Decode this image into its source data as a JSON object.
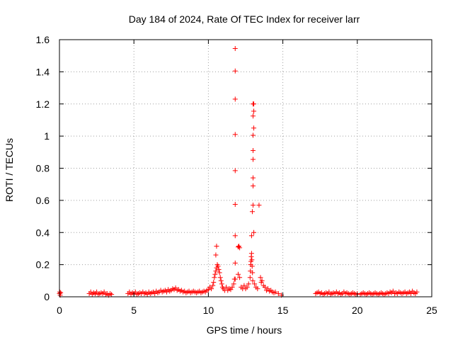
{
  "chart_data": {
    "type": "scatter",
    "title": "Day 184 of 2024, Rate Of TEC Index for receiver larr",
    "xlabel": "GPS time / hours",
    "ylabel": "ROTI / TECUs",
    "xlim": [
      0,
      25
    ],
    "ylim": [
      0,
      1.6
    ],
    "xticks": [
      0,
      5,
      10,
      15,
      20,
      25
    ],
    "xtick_labels": [
      "0",
      "5",
      "10",
      "15",
      "20",
      "25"
    ],
    "yticks": [
      0,
      0.2,
      0.4,
      0.6,
      0.8,
      1,
      1.2,
      1.4,
      1.6
    ],
    "ytick_labels": [
      "0",
      "0.2",
      "0.4",
      "0.6",
      "0.8",
      "1",
      "1.2",
      "1.4",
      "1.6"
    ],
    "grid": true,
    "marker": "+",
    "color": "#ff0000",
    "points": [
      [
        0.0,
        0.02
      ],
      [
        0.02,
        0.03
      ],
      [
        0.05,
        0.01
      ],
      [
        0.08,
        0.025
      ],
      [
        2.0,
        0.02
      ],
      [
        2.1,
        0.03
      ],
      [
        2.2,
        0.015
      ],
      [
        2.3,
        0.025
      ],
      [
        2.4,
        0.02
      ],
      [
        2.5,
        0.03
      ],
      [
        2.6,
        0.015
      ],
      [
        2.7,
        0.02
      ],
      [
        2.8,
        0.025
      ],
      [
        2.9,
        0.02
      ],
      [
        3.0,
        0.03
      ],
      [
        3.1,
        0.015
      ],
      [
        3.2,
        0.02
      ],
      [
        3.3,
        0.01
      ],
      [
        3.4,
        0.02
      ],
      [
        3.5,
        0.015
      ],
      [
        4.6,
        0.02
      ],
      [
        4.7,
        0.03
      ],
      [
        4.8,
        0.015
      ],
      [
        4.9,
        0.025
      ],
      [
        5.0,
        0.02
      ],
      [
        5.1,
        0.03
      ],
      [
        5.2,
        0.015
      ],
      [
        5.3,
        0.02
      ],
      [
        5.4,
        0.025
      ],
      [
        5.5,
        0.02
      ],
      [
        5.6,
        0.03
      ],
      [
        5.7,
        0.02
      ],
      [
        5.8,
        0.025
      ],
      [
        5.9,
        0.015
      ],
      [
        6.0,
        0.03
      ],
      [
        6.1,
        0.02
      ],
      [
        6.2,
        0.025
      ],
      [
        6.3,
        0.03
      ],
      [
        6.4,
        0.02
      ],
      [
        6.5,
        0.035
      ],
      [
        6.6,
        0.025
      ],
      [
        6.7,
        0.03
      ],
      [
        6.8,
        0.04
      ],
      [
        6.9,
        0.03
      ],
      [
        7.0,
        0.035
      ],
      [
        7.1,
        0.04
      ],
      [
        7.2,
        0.03
      ],
      [
        7.3,
        0.045
      ],
      [
        7.4,
        0.035
      ],
      [
        7.5,
        0.04
      ],
      [
        7.6,
        0.05
      ],
      [
        7.7,
        0.045
      ],
      [
        7.8,
        0.055
      ],
      [
        7.9,
        0.04
      ],
      [
        8.0,
        0.045
      ],
      [
        8.1,
        0.035
      ],
      [
        8.2,
        0.04
      ],
      [
        8.3,
        0.03
      ],
      [
        8.4,
        0.035
      ],
      [
        8.5,
        0.025
      ],
      [
        8.6,
        0.03
      ],
      [
        8.7,
        0.035
      ],
      [
        8.8,
        0.025
      ],
      [
        8.9,
        0.03
      ],
      [
        9.0,
        0.035
      ],
      [
        9.1,
        0.03
      ],
      [
        9.2,
        0.025
      ],
      [
        9.3,
        0.03
      ],
      [
        9.4,
        0.035
      ],
      [
        9.5,
        0.025
      ],
      [
        9.6,
        0.03
      ],
      [
        9.7,
        0.035
      ],
      [
        9.8,
        0.03
      ],
      [
        9.9,
        0.04
      ],
      [
        10.0,
        0.045
      ],
      [
        10.1,
        0.06
      ],
      [
        10.2,
        0.05
      ],
      [
        10.3,
        0.07
      ],
      [
        10.35,
        0.09
      ],
      [
        10.4,
        0.12
      ],
      [
        10.45,
        0.14
      ],
      [
        10.5,
        0.16
      ],
      [
        10.55,
        0.18
      ],
      [
        10.6,
        0.2
      ],
      [
        10.65,
        0.19
      ],
      [
        10.7,
        0.17
      ],
      [
        10.75,
        0.15
      ],
      [
        10.8,
        0.12
      ],
      [
        10.85,
        0.1
      ],
      [
        10.9,
        0.08
      ],
      [
        10.95,
        0.06
      ],
      [
        10.5,
        0.26
      ],
      [
        10.55,
        0.315
      ],
      [
        11.0,
        0.05
      ],
      [
        11.1,
        0.04
      ],
      [
        11.2,
        0.06
      ],
      [
        11.3,
        0.04
      ],
      [
        11.4,
        0.05
      ],
      [
        11.5,
        0.045
      ],
      [
        11.6,
        0.06
      ],
      [
        11.7,
        0.08
      ],
      [
        11.75,
        0.11
      ],
      [
        11.8,
        1.545
      ],
      [
        11.8,
        1.405
      ],
      [
        11.8,
        1.23
      ],
      [
        11.8,
        1.01
      ],
      [
        11.8,
        0.785
      ],
      [
        11.8,
        0.575
      ],
      [
        11.8,
        0.38
      ],
      [
        11.8,
        0.21
      ],
      [
        11.8,
        0.11
      ],
      [
        12.0,
        0.31
      ],
      [
        12.05,
        0.315
      ],
      [
        12.1,
        0.305
      ],
      [
        12.0,
        0.14
      ],
      [
        12.1,
        0.12
      ],
      [
        12.2,
        0.06
      ],
      [
        12.3,
        0.05
      ],
      [
        12.4,
        0.07
      ],
      [
        12.5,
        0.05
      ],
      [
        12.6,
        0.06
      ],
      [
        12.7,
        0.08
      ],
      [
        12.8,
        0.12
      ],
      [
        12.82,
        0.16
      ],
      [
        12.84,
        0.2
      ],
      [
        12.86,
        0.22
      ],
      [
        12.88,
        0.25
      ],
      [
        12.9,
        0.27
      ],
      [
        12.92,
        0.23
      ],
      [
        12.94,
        0.19
      ],
      [
        12.96,
        0.15
      ],
      [
        12.98,
        0.1
      ],
      [
        12.9,
        0.38
      ],
      [
        12.95,
        0.53
      ],
      [
        13.0,
        0.57
      ],
      [
        13.0,
        0.69
      ],
      [
        13.0,
        0.74
      ],
      [
        13.0,
        0.855
      ],
      [
        13.0,
        0.91
      ],
      [
        13.0,
        1.005
      ],
      [
        13.05,
        1.05
      ],
      [
        13.0,
        1.125
      ],
      [
        13.05,
        1.155
      ],
      [
        13.0,
        1.2
      ],
      [
        13.05,
        1.2
      ],
      [
        13.05,
        0.4
      ],
      [
        13.1,
        0.08
      ],
      [
        13.2,
        0.06
      ],
      [
        13.3,
        0.05
      ],
      [
        13.4,
        0.57
      ],
      [
        13.5,
        0.12
      ],
      [
        13.55,
        0.09
      ],
      [
        13.6,
        0.1
      ],
      [
        13.7,
        0.07
      ],
      [
        13.8,
        0.06
      ],
      [
        13.9,
        0.04
      ],
      [
        14.0,
        0.05
      ],
      [
        14.1,
        0.035
      ],
      [
        14.2,
        0.04
      ],
      [
        14.3,
        0.03
      ],
      [
        14.4,
        0.025
      ],
      [
        14.5,
        0.03
      ],
      [
        14.7,
        0.02
      ],
      [
        14.9,
        0.01
      ],
      [
        17.2,
        0.02
      ],
      [
        17.3,
        0.025
      ],
      [
        17.4,
        0.03
      ],
      [
        17.5,
        0.02
      ],
      [
        17.6,
        0.025
      ],
      [
        17.7,
        0.015
      ],
      [
        17.8,
        0.02
      ],
      [
        17.9,
        0.025
      ],
      [
        18.0,
        0.02
      ],
      [
        18.1,
        0.03
      ],
      [
        18.2,
        0.015
      ],
      [
        18.3,
        0.02
      ],
      [
        18.4,
        0.025
      ],
      [
        18.5,
        0.02
      ],
      [
        18.6,
        0.03
      ],
      [
        18.7,
        0.02
      ],
      [
        18.8,
        0.025
      ],
      [
        18.9,
        0.015
      ],
      [
        19.0,
        0.02
      ],
      [
        19.1,
        0.03
      ],
      [
        19.2,
        0.02
      ],
      [
        19.3,
        0.025
      ],
      [
        19.4,
        0.02
      ],
      [
        19.5,
        0.015
      ],
      [
        19.6,
        0.02
      ],
      [
        19.7,
        0.025
      ],
      [
        19.8,
        0.02
      ],
      [
        19.9,
        0.015
      ],
      [
        20.0,
        0.02
      ],
      [
        20.2,
        0.015
      ],
      [
        20.3,
        0.02
      ],
      [
        20.4,
        0.025
      ],
      [
        20.5,
        0.02
      ],
      [
        20.6,
        0.015
      ],
      [
        20.7,
        0.02
      ],
      [
        20.8,
        0.025
      ],
      [
        20.9,
        0.02
      ],
      [
        21.0,
        0.015
      ],
      [
        21.1,
        0.02
      ],
      [
        21.2,
        0.025
      ],
      [
        21.3,
        0.02
      ],
      [
        21.4,
        0.015
      ],
      [
        21.5,
        0.02
      ],
      [
        21.6,
        0.025
      ],
      [
        21.7,
        0.02
      ],
      [
        21.8,
        0.015
      ],
      [
        21.9,
        0.02
      ],
      [
        22.0,
        0.025
      ],
      [
        22.1,
        0.02
      ],
      [
        22.2,
        0.03
      ],
      [
        22.3,
        0.025
      ],
      [
        22.4,
        0.035
      ],
      [
        22.5,
        0.02
      ],
      [
        22.6,
        0.025
      ],
      [
        22.7,
        0.02
      ],
      [
        22.8,
        0.03
      ],
      [
        22.9,
        0.025
      ],
      [
        23.0,
        0.02
      ],
      [
        23.1,
        0.025
      ],
      [
        23.2,
        0.03
      ],
      [
        23.3,
        0.02
      ],
      [
        23.4,
        0.025
      ],
      [
        23.5,
        0.03
      ],
      [
        23.6,
        0.02
      ],
      [
        23.7,
        0.035
      ],
      [
        23.8,
        0.025
      ],
      [
        23.9,
        0.02
      ],
      [
        24.0,
        0.03
      ]
    ]
  }
}
